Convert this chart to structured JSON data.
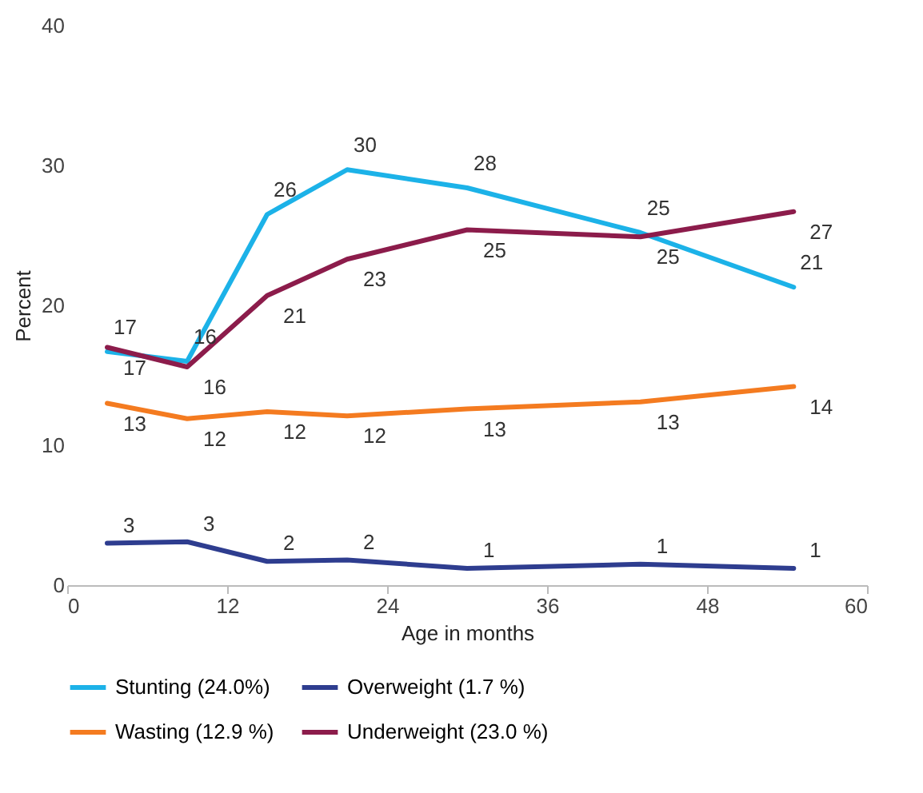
{
  "chart_data": {
    "type": "line",
    "xlabel": "Age in months",
    "ylabel": "Percent",
    "x": [
      3,
      9,
      15,
      21,
      30,
      43,
      54.5
    ],
    "xlim": [
      0,
      60
    ],
    "xticks": [
      0,
      12,
      24,
      36,
      48,
      60
    ],
    "ylim": [
      0,
      40
    ],
    "yticks": [
      0,
      10,
      20,
      30,
      40
    ],
    "grid": false,
    "legend": "bottom",
    "marker": "none",
    "line_style": "solid",
    "series": [
      {
        "name": "Stunting (24.0%)",
        "color": "#1cb2e8",
        "values": [
          16.7,
          16.0,
          26.5,
          29.7,
          28.4,
          25.2,
          21.3
        ],
        "value_labels": [
          "17",
          "16",
          "26",
          "30",
          "28",
          "25",
          "21"
        ]
      },
      {
        "name": "Overweight (1.7 %)",
        "color": "#2e3d8f",
        "values": [
          3.0,
          3.1,
          1.7,
          1.8,
          1.2,
          1.5,
          1.2
        ],
        "value_labels": [
          "3",
          "3",
          "2",
          "2",
          "1",
          "1",
          "1"
        ]
      },
      {
        "name": "Wasting (12.9 %)",
        "color": "#f47b20",
        "values": [
          13.0,
          11.9,
          12.4,
          12.1,
          12.6,
          13.1,
          14.2
        ],
        "value_labels": [
          "13",
          "12",
          "12",
          "12",
          "13",
          "13",
          "14"
        ]
      },
      {
        "name": "Underweight (23.0 %)",
        "color": "#8c1c4b",
        "values": [
          17.0,
          15.6,
          20.7,
          23.3,
          25.4,
          24.9,
          26.7
        ],
        "value_labels": [
          "17",
          "16",
          "21",
          "23",
          "25",
          "25",
          "27"
        ]
      }
    ]
  }
}
